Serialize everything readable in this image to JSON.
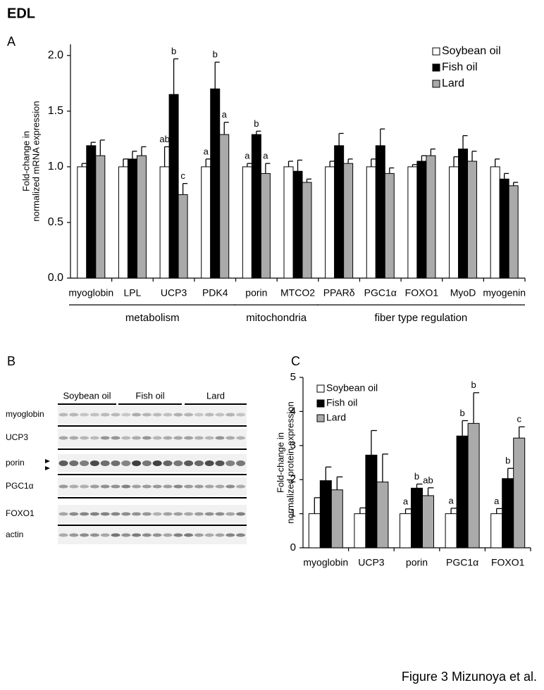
{
  "figure_title": "EDL",
  "caption": "Figure 3 Mizunoya et al.",
  "chart_data": [
    {
      "type": "bar",
      "panel": "A",
      "ylabel": [
        "Fold-change in",
        "normalized mRNA expression"
      ],
      "categories": [
        "myoglobin",
        "LPL",
        "UCP3",
        "PDK4",
        "porin",
        "MTCO2",
        "PPARδ",
        "PGC1α",
        "FOXO1",
        "MyoD",
        "myogenin"
      ],
      "category_groups": [
        {
          "label": "metabolism",
          "start": 0,
          "end": 3
        },
        {
          "label": "mitochondria",
          "start": 4,
          "end": 5
        },
        {
          "label": "fiber type regulation",
          "start": 6,
          "end": 10
        }
      ],
      "series": [
        {
          "name": "Soybean oil",
          "color": "#ffffff",
          "values": [
            1.0,
            1.0,
            1.0,
            1.0,
            1.0,
            1.0,
            1.0,
            1.0,
            1.0,
            1.0,
            1.0
          ],
          "errors": [
            0.03,
            0.07,
            0.18,
            0.07,
            0.03,
            0.05,
            0.05,
            0.07,
            0.02,
            0.09,
            0.07
          ],
          "letters": [
            null,
            null,
            "ab",
            "a",
            "a",
            null,
            null,
            null,
            null,
            null,
            null
          ]
        },
        {
          "name": "Fish oil",
          "color": "#000000",
          "values": [
            1.19,
            1.07,
            1.65,
            1.7,
            1.29,
            0.96,
            1.19,
            1.19,
            1.05,
            1.16,
            0.89
          ],
          "errors": [
            0.03,
            0.07,
            0.32,
            0.24,
            0.03,
            0.1,
            0.11,
            0.15,
            0.05,
            0.12,
            0.05
          ],
          "letters": [
            null,
            null,
            "b",
            "b",
            "b",
            null,
            null,
            null,
            null,
            null,
            null
          ]
        },
        {
          "name": "Lard",
          "color": "#aaaaaa",
          "values": [
            1.1,
            1.1,
            0.75,
            1.29,
            0.94,
            0.86,
            1.03,
            0.94,
            1.1,
            1.05,
            0.83
          ],
          "errors": [
            0.14,
            0.08,
            0.1,
            0.11,
            0.09,
            0.03,
            0.04,
            0.05,
            0.06,
            0.09,
            0.03
          ],
          "letters": [
            null,
            null,
            "c",
            "a",
            "a",
            null,
            null,
            null,
            null,
            null,
            null
          ]
        }
      ],
      "ylim": [
        0,
        2.1
      ],
      "yticks": [
        {
          "value": 0,
          "label": "0.0"
        },
        {
          "value": 0.5,
          "label": "0.5"
        },
        {
          "value": 1,
          "label": "1.0"
        },
        {
          "value": 1.5,
          "label": "1.5"
        },
        {
          "value": 2,
          "label": "2.0"
        }
      ],
      "grid": false,
      "legend": "upper right",
      "legend_frame": true
    },
    {
      "type": "bar",
      "panel": "C",
      "ylabel": [
        "Fold-change in",
        "normalized protein expression"
      ],
      "categories": [
        "myoglobin",
        "UCP3",
        "porin",
        "PGC1α",
        "FOXO1"
      ],
      "series": [
        {
          "name": "Soybean oil",
          "color": "#ffffff",
          "values": [
            1.0,
            1.0,
            1.0,
            1.0,
            1.0
          ],
          "errors": [
            0.47,
            0.17,
            0.14,
            0.16,
            0.15
          ],
          "letters": [
            null,
            null,
            "a",
            "a",
            "a"
          ]
        },
        {
          "name": "Fish oil",
          "color": "#000000",
          "values": [
            1.97,
            2.72,
            1.75,
            3.28,
            2.03
          ],
          "errors": [
            0.4,
            0.72,
            0.12,
            0.45,
            0.3
          ],
          "letters": [
            null,
            null,
            "b",
            "b",
            "b"
          ]
        },
        {
          "name": "Lard",
          "color": "#aaaaaa",
          "values": [
            1.7,
            1.93,
            1.53,
            3.65,
            3.22
          ],
          "errors": [
            0.38,
            0.82,
            0.23,
            0.9,
            0.33
          ],
          "letters": [
            null,
            null,
            "ab",
            "b",
            "c"
          ]
        }
      ],
      "ylim": [
        0,
        5
      ],
      "yticks": [
        0,
        1,
        2,
        3,
        4,
        5
      ],
      "grid": false,
      "legend": "upper left",
      "legend_frame": false
    }
  ],
  "blot": {
    "panel": "B",
    "groups": [
      "Soybean oil",
      "Fish oil",
      "Lard"
    ],
    "rows": [
      "myoglobin",
      "UCP3",
      "porin",
      "PGC1α",
      "FOXO1",
      "actin"
    ]
  }
}
